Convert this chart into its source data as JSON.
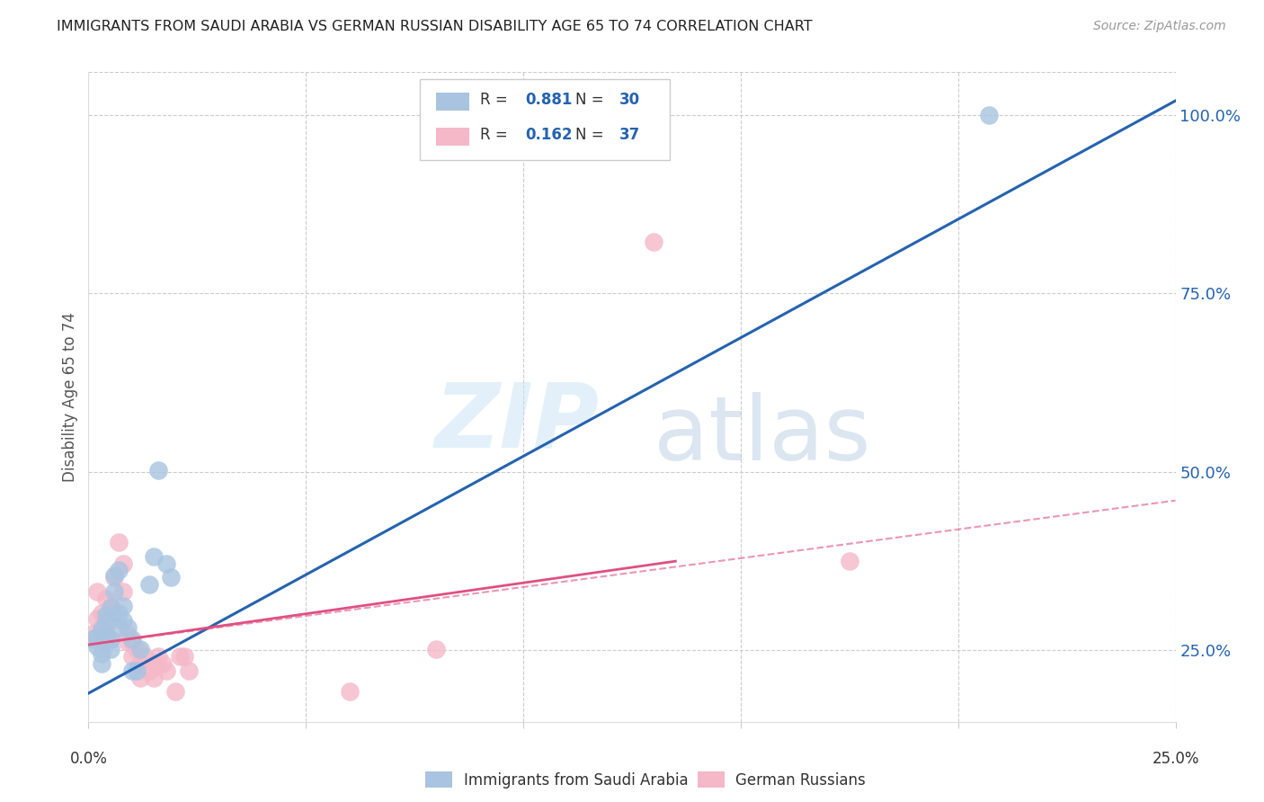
{
  "title": "IMMIGRANTS FROM SAUDI ARABIA VS GERMAN RUSSIAN DISABILITY AGE 65 TO 74 CORRELATION CHART",
  "source": "Source: ZipAtlas.com",
  "ylabel": "Disability Age 65 to 74",
  "xlim": [
    0.0,
    0.25
  ],
  "ylim": [
    0.15,
    1.06
  ],
  "yticks": [
    0.25,
    0.5,
    0.75,
    1.0
  ],
  "ytick_labels": [
    "25.0%",
    "50.0%",
    "75.0%",
    "100.0%"
  ],
  "blue_r": "0.881",
  "blue_n": "30",
  "pink_r": "0.162",
  "pink_n": "37",
  "blue_color": "#a8c4e0",
  "blue_line_color": "#2563b0",
  "pink_color": "#f4b8c8",
  "pink_line_color": "#e05080",
  "legend_label_blue": "Immigrants from Saudi Arabia",
  "legend_label_pink": "German Russians",
  "watermark_zip": "ZIP",
  "watermark_atlas": "atlas",
  "blue_points_x": [
    0.001,
    0.002,
    0.002,
    0.003,
    0.003,
    0.003,
    0.004,
    0.004,
    0.004,
    0.005,
    0.005,
    0.005,
    0.006,
    0.006,
    0.007,
    0.007,
    0.007,
    0.008,
    0.008,
    0.009,
    0.01,
    0.01,
    0.011,
    0.012,
    0.014,
    0.015,
    0.016,
    0.018,
    0.019,
    0.207
  ],
  "blue_points_y": [
    0.265,
    0.27,
    0.255,
    0.28,
    0.245,
    0.232,
    0.3,
    0.29,
    0.27,
    0.31,
    0.265,
    0.252,
    0.355,
    0.332,
    0.362,
    0.302,
    0.282,
    0.312,
    0.292,
    0.282,
    0.265,
    0.222,
    0.222,
    0.252,
    0.342,
    0.382,
    0.502,
    0.372,
    0.352,
    1.0
  ],
  "pink_points_x": [
    0.001,
    0.002,
    0.002,
    0.003,
    0.003,
    0.004,
    0.004,
    0.005,
    0.005,
    0.005,
    0.006,
    0.006,
    0.007,
    0.008,
    0.008,
    0.009,
    0.009,
    0.01,
    0.01,
    0.011,
    0.012,
    0.012,
    0.013,
    0.014,
    0.015,
    0.015,
    0.016,
    0.017,
    0.018,
    0.02,
    0.021,
    0.022,
    0.023,
    0.06,
    0.08,
    0.13,
    0.175
  ],
  "pink_points_y": [
    0.273,
    0.333,
    0.295,
    0.302,
    0.282,
    0.322,
    0.275,
    0.312,
    0.292,
    0.265,
    0.352,
    0.302,
    0.402,
    0.372,
    0.332,
    0.272,
    0.262,
    0.262,
    0.242,
    0.252,
    0.232,
    0.212,
    0.242,
    0.222,
    0.232,
    0.212,
    0.242,
    0.232,
    0.222,
    0.192,
    0.242,
    0.242,
    0.222,
    0.192,
    0.252,
    0.822,
    0.375
  ],
  "blue_line_x": [
    0.0,
    0.25
  ],
  "blue_line_y": [
    0.19,
    1.02
  ],
  "pink_solid_line_x": [
    0.0,
    0.135
  ],
  "pink_solid_line_y": [
    0.258,
    0.375
  ],
  "pink_dashed_line_x": [
    0.0,
    0.25
  ],
  "pink_dashed_line_y": [
    0.258,
    0.46
  ]
}
